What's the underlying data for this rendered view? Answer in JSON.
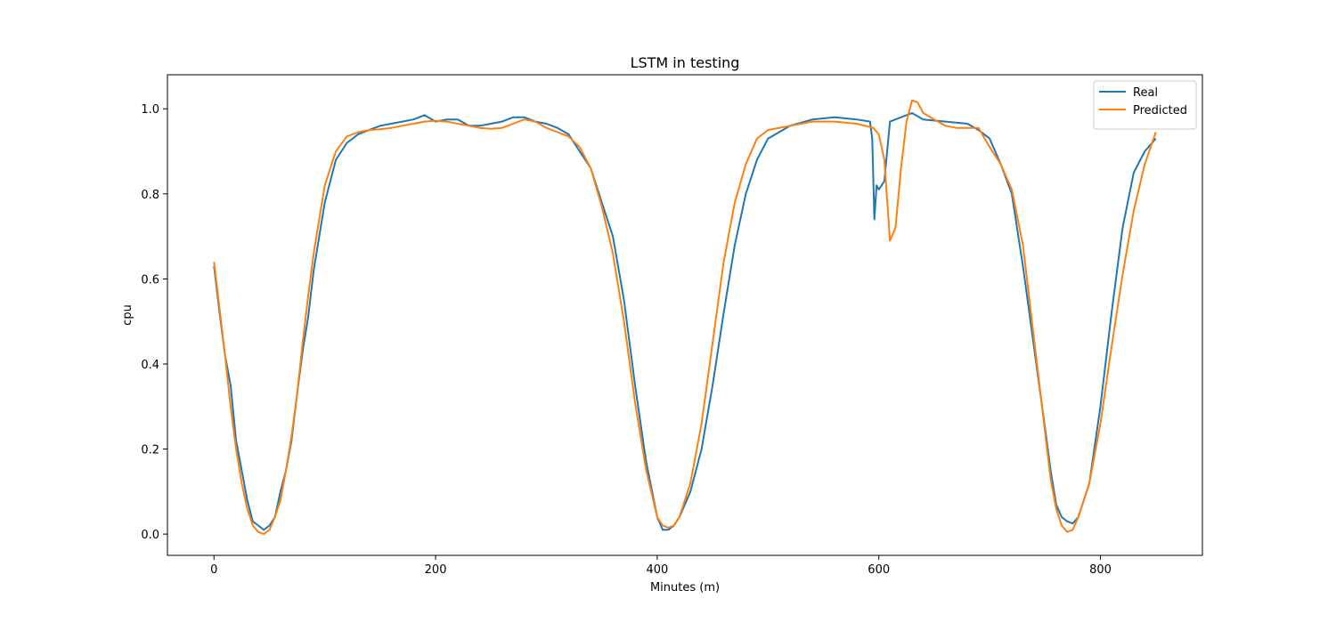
{
  "chart_data": {
    "type": "line",
    "title": "LSTM in testing",
    "xlabel": "Minutes (m)",
    "ylabel": "cpu",
    "xlim": [
      -42,
      892
    ],
    "ylim": [
      -0.05,
      1.08
    ],
    "xticks": [
      0,
      200,
      400,
      600,
      800
    ],
    "yticks": [
      0.0,
      0.2,
      0.4,
      0.6,
      0.8,
      1.0
    ],
    "ytick_labels": [
      "0.0",
      "0.2",
      "0.4",
      "0.6",
      "0.8",
      "1.0"
    ],
    "grid": false,
    "legend": "top-right",
    "series": [
      {
        "name": "Real",
        "color": "#1f77b4",
        "x": [
          0,
          5,
          10,
          15,
          20,
          25,
          30,
          35,
          40,
          45,
          50,
          55,
          60,
          65,
          70,
          75,
          80,
          85,
          90,
          95,
          100,
          110,
          120,
          130,
          140,
          150,
          160,
          170,
          180,
          190,
          200,
          210,
          220,
          230,
          240,
          250,
          260,
          270,
          280,
          290,
          300,
          310,
          320,
          330,
          340,
          350,
          360,
          370,
          380,
          390,
          400,
          405,
          410,
          415,
          420,
          430,
          440,
          450,
          460,
          470,
          480,
          490,
          500,
          520,
          540,
          560,
          580,
          592,
          594,
          596,
          598,
          600,
          605,
          610,
          620,
          630,
          640,
          660,
          680,
          690,
          700,
          710,
          720,
          730,
          740,
          750,
          755,
          760,
          765,
          770,
          775,
          780,
          790,
          800,
          810,
          820,
          830,
          840,
          850
        ],
        "y": [
          0.63,
          0.52,
          0.42,
          0.35,
          0.22,
          0.15,
          0.08,
          0.03,
          0.02,
          0.01,
          0.02,
          0.04,
          0.1,
          0.15,
          0.22,
          0.33,
          0.43,
          0.51,
          0.62,
          0.7,
          0.78,
          0.88,
          0.92,
          0.94,
          0.95,
          0.96,
          0.965,
          0.97,
          0.975,
          0.985,
          0.97,
          0.975,
          0.975,
          0.96,
          0.96,
          0.965,
          0.97,
          0.98,
          0.98,
          0.97,
          0.965,
          0.955,
          0.94,
          0.9,
          0.86,
          0.78,
          0.7,
          0.55,
          0.35,
          0.17,
          0.04,
          0.01,
          0.01,
          0.02,
          0.04,
          0.1,
          0.2,
          0.35,
          0.52,
          0.68,
          0.8,
          0.88,
          0.93,
          0.96,
          0.975,
          0.98,
          0.975,
          0.97,
          0.93,
          0.74,
          0.82,
          0.81,
          0.83,
          0.97,
          0.98,
          0.99,
          0.975,
          0.97,
          0.965,
          0.95,
          0.93,
          0.87,
          0.8,
          0.63,
          0.44,
          0.25,
          0.15,
          0.07,
          0.04,
          0.03,
          0.025,
          0.04,
          0.12,
          0.3,
          0.52,
          0.72,
          0.85,
          0.9,
          0.93
        ]
      },
      {
        "name": "Predicted",
        "color": "#ff7f0e",
        "x": [
          0,
          5,
          10,
          15,
          20,
          25,
          30,
          35,
          40,
          45,
          50,
          55,
          60,
          65,
          70,
          75,
          80,
          85,
          90,
          95,
          100,
          110,
          120,
          130,
          140,
          150,
          160,
          170,
          180,
          190,
          200,
          210,
          220,
          230,
          240,
          250,
          260,
          270,
          280,
          290,
          300,
          310,
          320,
          330,
          340,
          350,
          360,
          370,
          380,
          390,
          400,
          405,
          410,
          415,
          420,
          430,
          440,
          450,
          460,
          470,
          480,
          490,
          500,
          520,
          540,
          560,
          580,
          595,
          600,
          605,
          610,
          615,
          620,
          625,
          630,
          635,
          640,
          650,
          660,
          670,
          680,
          690,
          700,
          710,
          720,
          730,
          740,
          750,
          755,
          760,
          765,
          770,
          775,
          780,
          790,
          800,
          810,
          820,
          830,
          840,
          850
        ],
        "y": [
          0.64,
          0.53,
          0.42,
          0.3,
          0.2,
          0.12,
          0.06,
          0.02,
          0.005,
          0.0,
          0.01,
          0.04,
          0.08,
          0.15,
          0.23,
          0.33,
          0.45,
          0.56,
          0.66,
          0.74,
          0.82,
          0.9,
          0.935,
          0.945,
          0.95,
          0.952,
          0.955,
          0.96,
          0.965,
          0.97,
          0.972,
          0.97,
          0.965,
          0.96,
          0.955,
          0.953,
          0.955,
          0.965,
          0.975,
          0.97,
          0.955,
          0.945,
          0.935,
          0.91,
          0.86,
          0.77,
          0.66,
          0.5,
          0.31,
          0.15,
          0.04,
          0.02,
          0.015,
          0.02,
          0.04,
          0.12,
          0.26,
          0.45,
          0.64,
          0.78,
          0.87,
          0.93,
          0.95,
          0.96,
          0.97,
          0.97,
          0.965,
          0.955,
          0.94,
          0.88,
          0.69,
          0.72,
          0.86,
          0.97,
          1.02,
          1.015,
          0.99,
          0.975,
          0.96,
          0.955,
          0.955,
          0.955,
          0.91,
          0.87,
          0.81,
          0.68,
          0.46,
          0.24,
          0.13,
          0.06,
          0.02,
          0.005,
          0.01,
          0.04,
          0.12,
          0.26,
          0.44,
          0.61,
          0.76,
          0.87,
          0.945
        ]
      }
    ]
  }
}
